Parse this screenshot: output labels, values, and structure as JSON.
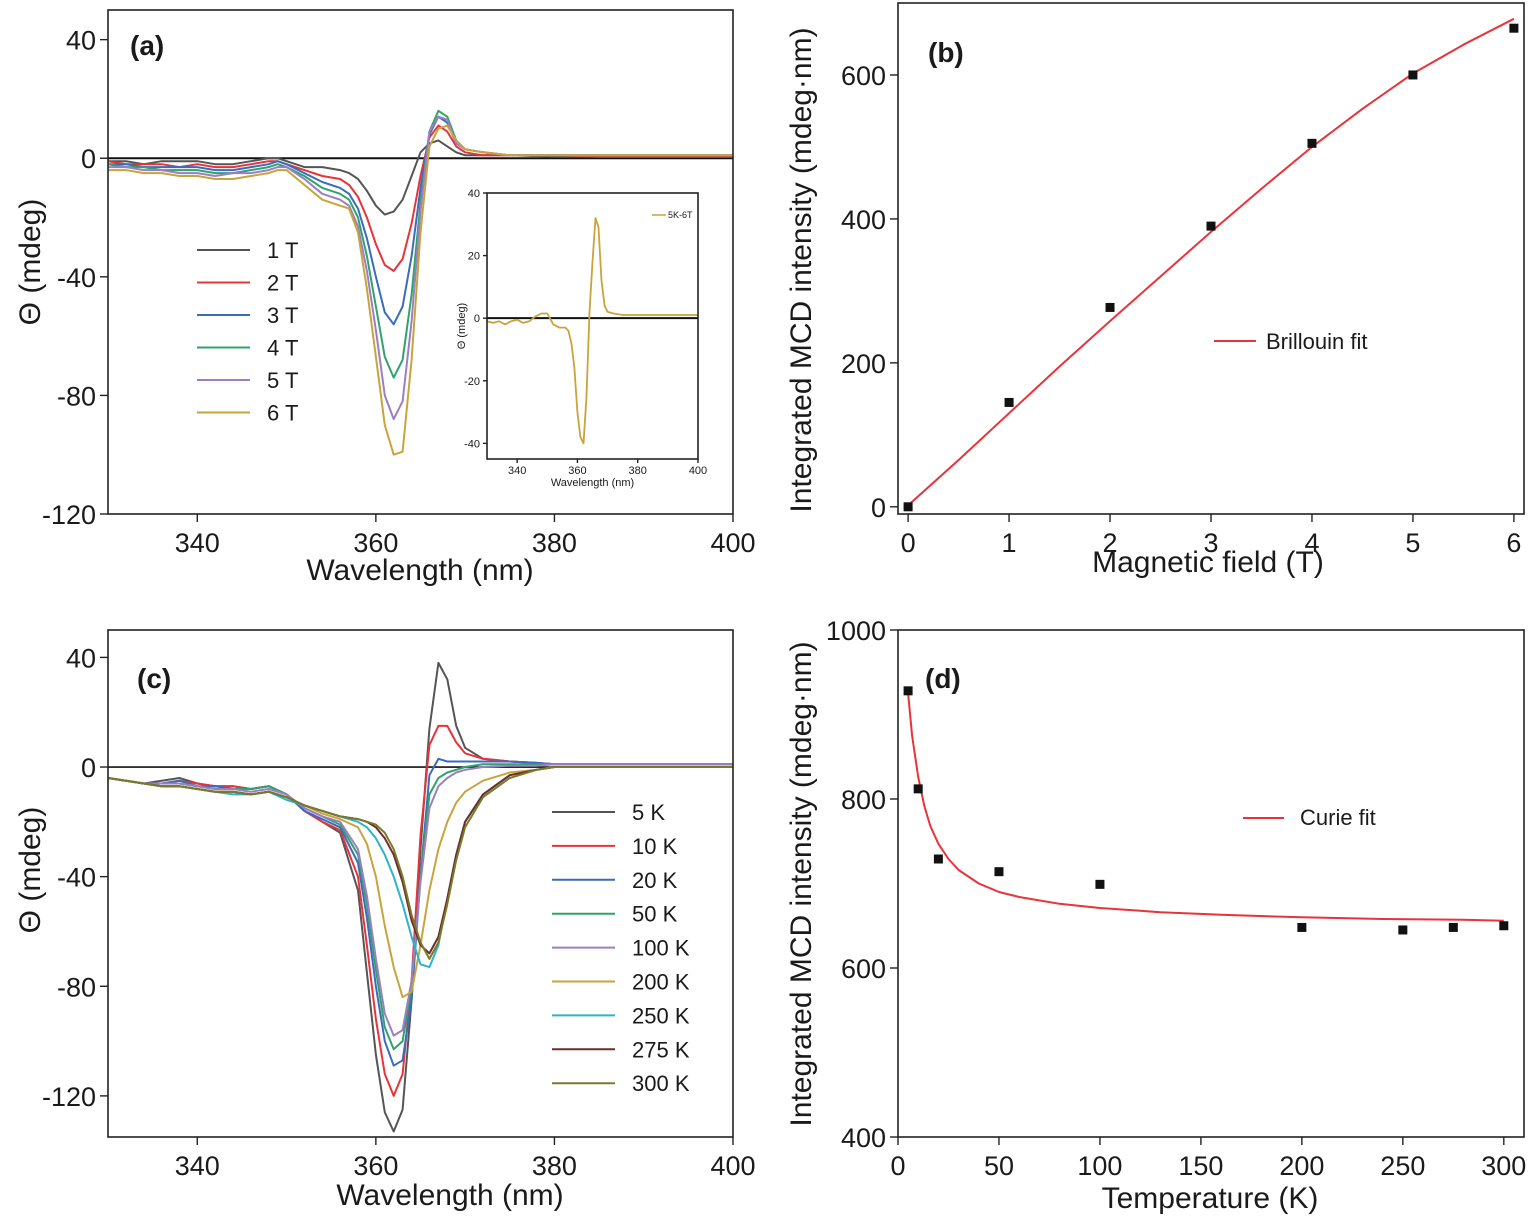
{
  "chart_data": [
    {
      "type": "line",
      "panel_label": "(a)",
      "xlabel": "Wavelength (nm)",
      "ylabel": "Θ (mdeg)",
      "xlim": [
        330,
        400
      ],
      "ylim": [
        -120,
        50
      ],
      "xticks": [
        340,
        360,
        380,
        400
      ],
      "yticks": [
        40,
        0,
        -40,
        -80,
        -120
      ],
      "grid": false,
      "legend": "left",
      "x": [
        330,
        332,
        334,
        336,
        338,
        340,
        342,
        344,
        346,
        348,
        349,
        350,
        352,
        354,
        356,
        357,
        358,
        359,
        360,
        361,
        362,
        363,
        364,
        365,
        366,
        367,
        368,
        369,
        370,
        372,
        375,
        380,
        385,
        390,
        395,
        400
      ],
      "series": [
        {
          "name": "1 T",
          "color": "#555555",
          "values": [
            -1,
            -1,
            -2,
            -1,
            -1,
            -1,
            -2,
            -2,
            -1,
            0,
            0,
            -1,
            -3,
            -3,
            -4,
            -5,
            -7,
            -11,
            -16,
            -19,
            -18,
            -14,
            -6,
            2,
            5,
            6,
            4,
            2,
            1,
            1,
            1,
            0.5,
            0.5,
            0.5,
            0.5,
            0.5
          ]
        },
        {
          "name": "2 T",
          "color": "#e8333a",
          "values": [
            -1,
            -2,
            -2,
            -2,
            -3,
            -2,
            -3,
            -3,
            -2,
            -1,
            -1,
            -2,
            -4,
            -6,
            -7,
            -9,
            -13,
            -20,
            -29,
            -36,
            -38,
            -34,
            -22,
            -6,
            7,
            11,
            9,
            4,
            2,
            1,
            1,
            1,
            0.5,
            0.5,
            0.5,
            0.5
          ]
        },
        {
          "name": "3 T",
          "color": "#3b6bbd",
          "values": [
            -2,
            -2,
            -3,
            -3,
            -3,
            -3,
            -4,
            -4,
            -3,
            -2,
            -1,
            -2,
            -5,
            -8,
            -10,
            -12,
            -17,
            -27,
            -40,
            -52,
            -56,
            -50,
            -33,
            -10,
            8,
            14,
            12,
            5,
            3,
            2,
            1,
            1,
            1,
            1,
            1,
            1
          ]
        },
        {
          "name": "4 T",
          "color": "#2fa36b",
          "values": [
            -2,
            -3,
            -3,
            -4,
            -4,
            -4,
            -5,
            -5,
            -4,
            -3,
            -2,
            -3,
            -6,
            -10,
            -12,
            -14,
            -20,
            -33,
            -50,
            -67,
            -74,
            -68,
            -46,
            -15,
            9,
            16,
            14,
            6,
            3,
            2,
            1,
            1,
            1,
            1,
            1,
            1
          ]
        },
        {
          "name": "5 T",
          "color": "#9b7fc4",
          "values": [
            -3,
            -3,
            -4,
            -4,
            -5,
            -5,
            -6,
            -5,
            -5,
            -4,
            -3,
            -3,
            -7,
            -12,
            -14,
            -16,
            -23,
            -38,
            -58,
            -80,
            -88,
            -82,
            -55,
            -18,
            9,
            14,
            13,
            5,
            3,
            2,
            1,
            1,
            1,
            1,
            1,
            1
          ]
        },
        {
          "name": "6 T",
          "color": "#c9a33b",
          "values": [
            -4,
            -4,
            -5,
            -5,
            -6,
            -6,
            -7,
            -7,
            -6,
            -5,
            -4,
            -4,
            -9,
            -14,
            -16,
            -17,
            -25,
            -44,
            -67,
            -90,
            -100,
            -99,
            -68,
            -25,
            4,
            10,
            11,
            6,
            3,
            2,
            1,
            1,
            1,
            1,
            1,
            1
          ]
        }
      ],
      "inset": {
        "type": "line",
        "xlabel": "Wavelength (nm)",
        "ylabel": "Θ (mdeg)",
        "xlim": [
          330,
          400
        ],
        "ylim": [
          -45,
          40
        ],
        "xticks": [
          340,
          360,
          380,
          400
        ],
        "yticks": [
          40,
          20,
          0,
          -20,
          -40
        ],
        "series": [
          {
            "name": "5K-6T",
            "color": "#c9a33b",
            "x": [
              330,
              332,
              334,
              336,
              338,
              340,
              342,
              344,
              346,
              348,
              350,
              352,
              354,
              356,
              357,
              358,
              359,
              360,
              361,
              362,
              363,
              364,
              365,
              366,
              367,
              368,
              369,
              370,
              372,
              375,
              380,
              385,
              390,
              395,
              400
            ],
            "values": [
              -1,
              -1.5,
              -1,
              -2,
              -1,
              -0.5,
              -1.5,
              -1,
              0.5,
              1.5,
              1.5,
              -2,
              -3,
              -3,
              -4,
              -8,
              -16,
              -30,
              -38,
              -40,
              -25,
              2,
              18,
              32,
              29,
              12,
              4,
              2,
              1.5,
              1,
              1,
              1,
              1,
              1,
              1
            ]
          }
        ]
      }
    },
    {
      "type": "scatter",
      "panel_label": "(b)",
      "xlabel": "Magnetic field (T)",
      "ylabel": "Integrated MCD intensity (mdeg·nm)",
      "xlim": [
        -0.1,
        6.1
      ],
      "ylim": [
        -10,
        700
      ],
      "xticks": [
        0,
        1,
        2,
        3,
        4,
        5,
        6
      ],
      "yticks": [
        0,
        200,
        400,
        600
      ],
      "grid": false,
      "legend": "middle-right",
      "points": {
        "x": [
          0,
          1,
          2,
          3,
          4,
          5,
          6
        ],
        "y": [
          0,
          145,
          277,
          390,
          505,
          600,
          665
        ]
      },
      "fit": {
        "name": "Brillouin fit",
        "color": "#e8333a",
        "x": [
          0,
          0.5,
          1,
          1.5,
          2,
          2.5,
          3,
          3.5,
          4,
          4.5,
          5,
          5.5,
          6
        ],
        "y": [
          2,
          65,
          130,
          195,
          258,
          320,
          382,
          442,
          500,
          553,
          602,
          642,
          678
        ]
      }
    },
    {
      "type": "line",
      "panel_label": "(c)",
      "xlabel": "Wavelength (nm)",
      "ylabel": "Θ (mdeg)",
      "xlim": [
        330,
        400
      ],
      "ylim": [
        -135,
        50
      ],
      "xticks": [
        340,
        360,
        380,
        400
      ],
      "yticks": [
        40,
        0,
        -40,
        -80,
        -120
      ],
      "grid": false,
      "legend": "right",
      "x": [
        330,
        332,
        334,
        336,
        338,
        340,
        342,
        344,
        346,
        348,
        350,
        352,
        354,
        356,
        358,
        359,
        360,
        361,
        362,
        363,
        364,
        365,
        366,
        367,
        368,
        369,
        370,
        372,
        375,
        378,
        380,
        385,
        390,
        395,
        400
      ],
      "series": [
        {
          "name": "5 K",
          "color": "#555555",
          "values": [
            -4,
            -5,
            -6,
            -5,
            -4,
            -6,
            -7,
            -7,
            -8,
            -7,
            -10,
            -16,
            -20,
            -24,
            -45,
            -75,
            -105,
            -126,
            -133,
            -125,
            -85,
            -30,
            14,
            38,
            32,
            15,
            7,
            3,
            2,
            1.5,
            1,
            1,
            1,
            1,
            1
          ]
        },
        {
          "name": "10 K",
          "color": "#e8333a",
          "values": [
            -4,
            -5,
            -6,
            -6,
            -5,
            -6,
            -7,
            -7,
            -8,
            -7,
            -10,
            -16,
            -20,
            -23,
            -40,
            -65,
            -92,
            -112,
            -120,
            -112,
            -78,
            -25,
            8,
            15,
            15,
            9,
            5,
            3,
            2,
            1.5,
            1,
            1,
            1,
            1,
            1
          ]
        },
        {
          "name": "20 K",
          "color": "#3b6bbd",
          "values": [
            -4,
            -5,
            -6,
            -6,
            -5,
            -7,
            -7,
            -8,
            -8,
            -7,
            -10,
            -16,
            -19,
            -22,
            -35,
            -55,
            -80,
            -100,
            -109,
            -107,
            -85,
            -40,
            -3,
            3,
            2,
            2,
            2,
            2,
            2,
            1.5,
            1,
            1,
            1,
            1,
            1
          ]
        },
        {
          "name": "50 K",
          "color": "#2fa36b",
          "values": [
            -4,
            -5,
            -6,
            -6,
            -6,
            -7,
            -8,
            -8,
            -8,
            -7,
            -10,
            -15,
            -18,
            -21,
            -32,
            -50,
            -74,
            -95,
            -103,
            -100,
            -80,
            -40,
            -10,
            -4,
            -2,
            -1,
            0,
            1,
            1,
            1,
            1,
            1,
            1,
            1,
            1
          ]
        },
        {
          "name": "100 K",
          "color": "#9b7fc4",
          "values": [
            -4,
            -5,
            -6,
            -6,
            -6,
            -7,
            -8,
            -8,
            -9,
            -8,
            -10,
            -15,
            -18,
            -20,
            -30,
            -47,
            -70,
            -90,
            -98,
            -96,
            -78,
            -42,
            -15,
            -7,
            -4,
            -2,
            -1,
            0,
            0.5,
            0.5,
            1,
            1,
            1,
            1,
            1
          ]
        },
        {
          "name": "200 K",
          "color": "#c9a33b",
          "values": [
            -4,
            -5,
            -6,
            -7,
            -7,
            -8,
            -9,
            -9,
            -10,
            -9,
            -11,
            -14,
            -17,
            -19,
            -22,
            -28,
            -40,
            -58,
            -73,
            -84,
            -82,
            -65,
            -45,
            -30,
            -20,
            -13,
            -9,
            -5,
            -2,
            -1,
            0,
            0,
            0,
            0,
            0
          ]
        },
        {
          "name": "250 K",
          "color": "#2cb4c8",
          "values": [
            -4,
            -5,
            -6,
            -7,
            -7,
            -8,
            -9,
            -10,
            -10,
            -9,
            -12,
            -14,
            -16,
            -18,
            -20,
            -22,
            -26,
            -32,
            -40,
            -50,
            -62,
            -72,
            -73,
            -65,
            -48,
            -32,
            -20,
            -10,
            -3,
            -1,
            0,
            0,
            0,
            0,
            0
          ]
        },
        {
          "name": "275 K",
          "color": "#6b2d2d",
          "values": [
            -4,
            -5,
            -6,
            -7,
            -7,
            -8,
            -9,
            -9,
            -10,
            -9,
            -11,
            -14,
            -16,
            -18,
            -19,
            -20,
            -22,
            -26,
            -32,
            -42,
            -56,
            -65,
            -68,
            -62,
            -48,
            -32,
            -20,
            -10,
            -3,
            -1,
            0,
            0,
            0,
            0,
            0
          ]
        },
        {
          "name": "300 K",
          "color": "#7a7a2a",
          "values": [
            -4,
            -5,
            -6,
            -7,
            -7,
            -8,
            -9,
            -9,
            -10,
            -9,
            -11,
            -14,
            -16,
            -18,
            -19,
            -20,
            -21,
            -24,
            -30,
            -40,
            -54,
            -64,
            -70,
            -64,
            -50,
            -34,
            -22,
            -11,
            -4,
            -1,
            0,
            0,
            0,
            0,
            0
          ]
        }
      ]
    },
    {
      "type": "scatter",
      "panel_label": "(d)",
      "xlabel": "Temperature (K)",
      "ylabel": "Integrated MCD intensity (mdeg·nm)",
      "xlim": [
        0,
        310
      ],
      "ylim": [
        400,
        1000
      ],
      "xticks": [
        0,
        50,
        100,
        150,
        200,
        250,
        300
      ],
      "yticks": [
        400,
        600,
        800,
        1000
      ],
      "grid": false,
      "legend": "middle-right",
      "points": {
        "x": [
          5,
          10,
          20,
          50,
          100,
          200,
          250,
          275,
          300
        ],
        "y": [
          928,
          812,
          729,
          714,
          699,
          648,
          645,
          648,
          650
        ]
      },
      "fit": {
        "name": "Curie fit",
        "color": "#e8333a",
        "x": [
          5,
          7,
          10,
          13,
          16,
          20,
          25,
          30,
          40,
          50,
          60,
          80,
          100,
          130,
          160,
          200,
          240,
          280,
          300
        ],
        "y": [
          925,
          875,
          826,
          792,
          768,
          747,
          729,
          716,
          700,
          690,
          684,
          676,
          671,
          666,
          663,
          660,
          658,
          657,
          656
        ]
      }
    }
  ]
}
